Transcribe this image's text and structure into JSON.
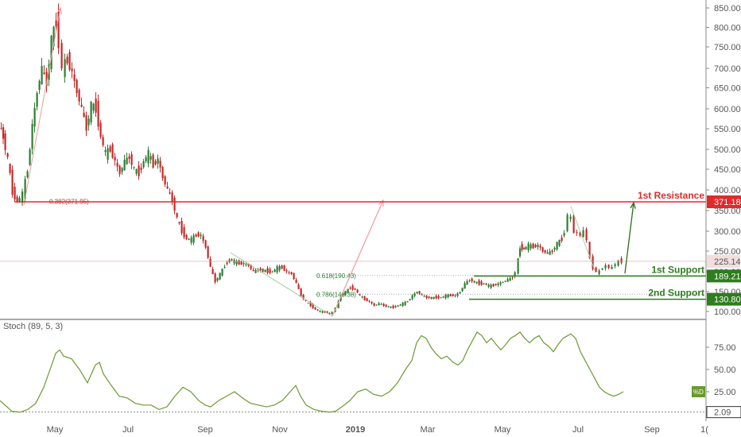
{
  "chart_data": [
    {
      "type": "candlestick",
      "ylim": [
        80,
        860
      ],
      "price_axis": [
        "850.00",
        "800.00",
        "750.00",
        "700.00",
        "650.00",
        "600.00",
        "550.00",
        "500.00",
        "450.00",
        "400.00",
        "350.00",
        "300.00",
        "250.00",
        "200.00",
        "150.00",
        "100.00"
      ],
      "price_axis_values": [
        850,
        800,
        750,
        700,
        650,
        600,
        550,
        500,
        450,
        400,
        350,
        300,
        250,
        200,
        150,
        100
      ],
      "x_labels": [
        "May",
        "Jul",
        "Sep",
        "Nov",
        "2019",
        "Mar",
        "May",
        "Jul",
        "Sep",
        "1("
      ],
      "last_price": "225.14",
      "levels": [
        {
          "name": "1st Resistance",
          "value": 371.18,
          "label": "371.18",
          "color": "#e02b2b"
        },
        {
          "name": "1st Support",
          "value": 189.21,
          "label": "189.21",
          "color": "#2e7d1e"
        },
        {
          "name": "2nd Support",
          "value": 130.8,
          "label": "130.80",
          "color": "#2e7d1e"
        }
      ],
      "fib_labels": [
        {
          "text": "0.382(371.95)",
          "value": 371.95
        },
        {
          "text": "0.618(190.43)",
          "value": 190.43
        },
        {
          "text": "0.786(143.38)",
          "value": 143.38
        }
      ],
      "price_path": [
        [
          0,
          560
        ],
        [
          5,
          530
        ],
        [
          11,
          475
        ],
        [
          17,
          395
        ],
        [
          23,
          372
        ],
        [
          30,
          390
        ],
        [
          36,
          450
        ],
        [
          42,
          560
        ],
        [
          48,
          640
        ],
        [
          54,
          700
        ],
        [
          60,
          660
        ],
        [
          66,
          770
        ],
        [
          72,
          815
        ],
        [
          76,
          760
        ],
        [
          80,
          700
        ],
        [
          86,
          720
        ],
        [
          92,
          690
        ],
        [
          98,
          640
        ],
        [
          104,
          600
        ],
        [
          110,
          550
        ],
        [
          116,
          610
        ],
        [
          122,
          600
        ],
        [
          128,
          530
        ],
        [
          134,
          490
        ],
        [
          140,
          500
        ],
        [
          146,
          470
        ],
        [
          152,
          440
        ],
        [
          158,
          470
        ],
        [
          164,
          480
        ],
        [
          170,
          450
        ],
        [
          176,
          440
        ],
        [
          182,
          470
        ],
        [
          188,
          490
        ],
        [
          194,
          460
        ],
        [
          200,
          475
        ],
        [
          206,
          430
        ],
        [
          212,
          400
        ],
        [
          218,
          375
        ],
        [
          224,
          330
        ],
        [
          230,
          300
        ],
        [
          236,
          280
        ],
        [
          242,
          280
        ],
        [
          248,
          290
        ],
        [
          254,
          290
        ],
        [
          260,
          260
        ],
        [
          266,
          210
        ],
        [
          272,
          175
        ],
        [
          278,
          195
        ],
        [
          284,
          215
        ],
        [
          290,
          230
        ],
        [
          296,
          225
        ],
        [
          302,
          220
        ],
        [
          308,
          220
        ],
        [
          314,
          215
        ],
        [
          320,
          200
        ],
        [
          326,
          205
        ],
        [
          332,
          205
        ],
        [
          338,
          200
        ],
        [
          344,
          200
        ],
        [
          350,
          210
        ],
        [
          356,
          210
        ],
        [
          362,
          200
        ],
        [
          368,
          195
        ],
        [
          374,
          170
        ],
        [
          380,
          140
        ],
        [
          386,
          125
        ],
        [
          392,
          115
        ],
        [
          398,
          105
        ],
        [
          404,
          100
        ],
        [
          410,
          98
        ],
        [
          416,
          95
        ],
        [
          420,
          98
        ],
        [
          424,
          110
        ],
        [
          430,
          140
        ],
        [
          436,
          150
        ],
        [
          442,
          160
        ],
        [
          448,
          155
        ],
        [
          454,
          140
        ],
        [
          460,
          130
        ],
        [
          466,
          125
        ],
        [
          472,
          115
        ],
        [
          478,
          120
        ],
        [
          484,
          115
        ],
        [
          490,
          112
        ],
        [
          496,
          110
        ],
        [
          502,
          115
        ],
        [
          508,
          120
        ],
        [
          514,
          125
        ],
        [
          520,
          140
        ],
        [
          526,
          150
        ],
        [
          532,
          140
        ],
        [
          538,
          135
        ],
        [
          544,
          135
        ],
        [
          550,
          135
        ],
        [
          556,
          135
        ],
        [
          562,
          140
        ],
        [
          568,
          140
        ],
        [
          574,
          140
        ],
        [
          580,
          150
        ],
        [
          586,
          170
        ],
        [
          592,
          180
        ],
        [
          598,
          175
        ],
        [
          604,
          170
        ],
        [
          610,
          170
        ],
        [
          616,
          165
        ],
        [
          622,
          165
        ],
        [
          628,
          170
        ],
        [
          634,
          175
        ],
        [
          640,
          180
        ],
        [
          646,
          185
        ],
        [
          650,
          200
        ],
        [
          655,
          260
        ],
        [
          660,
          255
        ],
        [
          666,
          265
        ],
        [
          672,
          260
        ],
        [
          678,
          265
        ],
        [
          684,
          250
        ],
        [
          690,
          245
        ],
        [
          696,
          250
        ],
        [
          702,
          270
        ],
        [
          708,
          280
        ],
        [
          712,
          300
        ],
        [
          716,
          340
        ],
        [
          720,
          330
        ],
        [
          724,
          300
        ],
        [
          728,
          295
        ],
        [
          732,
          290
        ],
        [
          736,
          300
        ],
        [
          740,
          280
        ],
        [
          744,
          230
        ],
        [
          748,
          210
        ],
        [
          752,
          200
        ],
        [
          756,
          200
        ],
        [
          760,
          210
        ],
        [
          764,
          215
        ],
        [
          768,
          210
        ],
        [
          772,
          210
        ],
        [
          776,
          220
        ],
        [
          780,
          225
        ],
        [
          784,
          225
        ]
      ]
    },
    {
      "type": "line",
      "title": "Stoch (89, 5, 3)",
      "series": [
        {
          "name": "%D",
          "values": []
        }
      ],
      "ylim": [
        0,
        100
      ],
      "axis": [
        "75.00",
        "50.00",
        "25.00"
      ],
      "axis_values": [
        75,
        50,
        25
      ],
      "last_tag": "%D",
      "low_tag": "2.09",
      "low_value": 2.09,
      "path": [
        [
          0,
          15
        ],
        [
          15,
          3
        ],
        [
          25,
          2
        ],
        [
          35,
          5
        ],
        [
          45,
          12
        ],
        [
          55,
          30
        ],
        [
          65,
          55
        ],
        [
          70,
          68
        ],
        [
          75,
          72
        ],
        [
          80,
          65
        ],
        [
          90,
          62
        ],
        [
          100,
          50
        ],
        [
          110,
          35
        ],
        [
          120,
          55
        ],
        [
          125,
          58
        ],
        [
          130,
          45
        ],
        [
          140,
          32
        ],
        [
          150,
          20
        ],
        [
          160,
          18
        ],
        [
          170,
          12
        ],
        [
          180,
          10
        ],
        [
          190,
          10
        ],
        [
          200,
          5
        ],
        [
          210,
          8
        ],
        [
          220,
          20
        ],
        [
          230,
          30
        ],
        [
          240,
          25
        ],
        [
          250,
          15
        ],
        [
          258,
          10
        ],
        [
          265,
          8
        ],
        [
          275,
          15
        ],
        [
          285,
          20
        ],
        [
          295,
          25
        ],
        [
          305,
          18
        ],
        [
          315,
          12
        ],
        [
          325,
          10
        ],
        [
          335,
          8
        ],
        [
          345,
          10
        ],
        [
          355,
          15
        ],
        [
          365,
          25
        ],
        [
          372,
          32
        ],
        [
          378,
          20
        ],
        [
          385,
          10
        ],
        [
          395,
          5
        ],
        [
          405,
          3
        ],
        [
          415,
          2
        ],
        [
          422,
          3
        ],
        [
          430,
          8
        ],
        [
          440,
          15
        ],
        [
          450,
          25
        ],
        [
          460,
          28
        ],
        [
          470,
          22
        ],
        [
          480,
          20
        ],
        [
          490,
          25
        ],
        [
          500,
          35
        ],
        [
          510,
          50
        ],
        [
          518,
          60
        ],
        [
          524,
          80
        ],
        [
          530,
          88
        ],
        [
          536,
          85
        ],
        [
          542,
          75
        ],
        [
          548,
          68
        ],
        [
          555,
          62
        ],
        [
          562,
          65
        ],
        [
          570,
          58
        ],
        [
          576,
          55
        ],
        [
          582,
          60
        ],
        [
          588,
          72
        ],
        [
          594,
          82
        ],
        [
          600,
          92
        ],
        [
          606,
          88
        ],
        [
          612,
          80
        ],
        [
          618,
          85
        ],
        [
          624,
          78
        ],
        [
          630,
          72
        ],
        [
          636,
          78
        ],
        [
          642,
          85
        ],
        [
          648,
          88
        ],
        [
          654,
          92
        ],
        [
          660,
          85
        ],
        [
          666,
          80
        ],
        [
          672,
          85
        ],
        [
          678,
          88
        ],
        [
          684,
          80
        ],
        [
          690,
          76
        ],
        [
          696,
          70
        ],
        [
          702,
          78
        ],
        [
          708,
          85
        ],
        [
          714,
          88
        ],
        [
          718,
          90
        ],
        [
          724,
          85
        ],
        [
          730,
          70
        ],
        [
          736,
          60
        ],
        [
          742,
          50
        ],
        [
          748,
          40
        ],
        [
          754,
          30
        ],
        [
          760,
          25
        ],
        [
          766,
          22
        ],
        [
          772,
          20
        ],
        [
          778,
          22
        ],
        [
          784,
          25
        ]
      ]
    }
  ]
}
